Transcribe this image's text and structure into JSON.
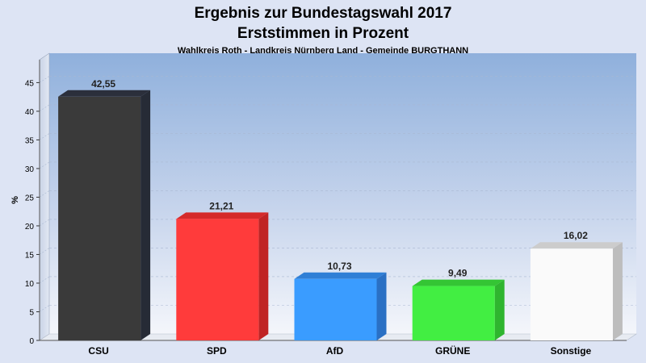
{
  "chart_data": {
    "type": "bar",
    "title": "Ergebnis zur Bundestagswahl 2017",
    "title2": "Erststimmen in Prozent",
    "subtitle": "Wahlkreis Roth - Landkreis Nürnberg Land - Gemeinde BURGTHANN",
    "ylabel": "%",
    "xlabel": "",
    "ylim": [
      0,
      49
    ],
    "yticks": [
      0,
      5,
      10,
      15,
      20,
      25,
      30,
      35,
      40,
      45
    ],
    "grid": true,
    "categories": [
      "CSU",
      "SPD",
      "AfD",
      "GRÜNE",
      "Sonstige"
    ],
    "values": [
      42.55,
      21.21,
      10.73,
      9.49,
      16.02
    ],
    "value_labels": [
      "42,55",
      "21,21",
      "10,73",
      "9,49",
      "16,02"
    ],
    "colors": [
      "#3a3a3a",
      "#ff3b3b",
      "#3a9cff",
      "#42ee42",
      "#fafafa"
    ],
    "side_colors": [
      "#262b36",
      "#c02424",
      "#2a70c4",
      "#2fb52f",
      "#bdbdbd"
    ],
    "top_colors": [
      "#2b2f3b",
      "#d52a2a",
      "#2f7fd6",
      "#34c534",
      "#cccccc"
    ]
  }
}
